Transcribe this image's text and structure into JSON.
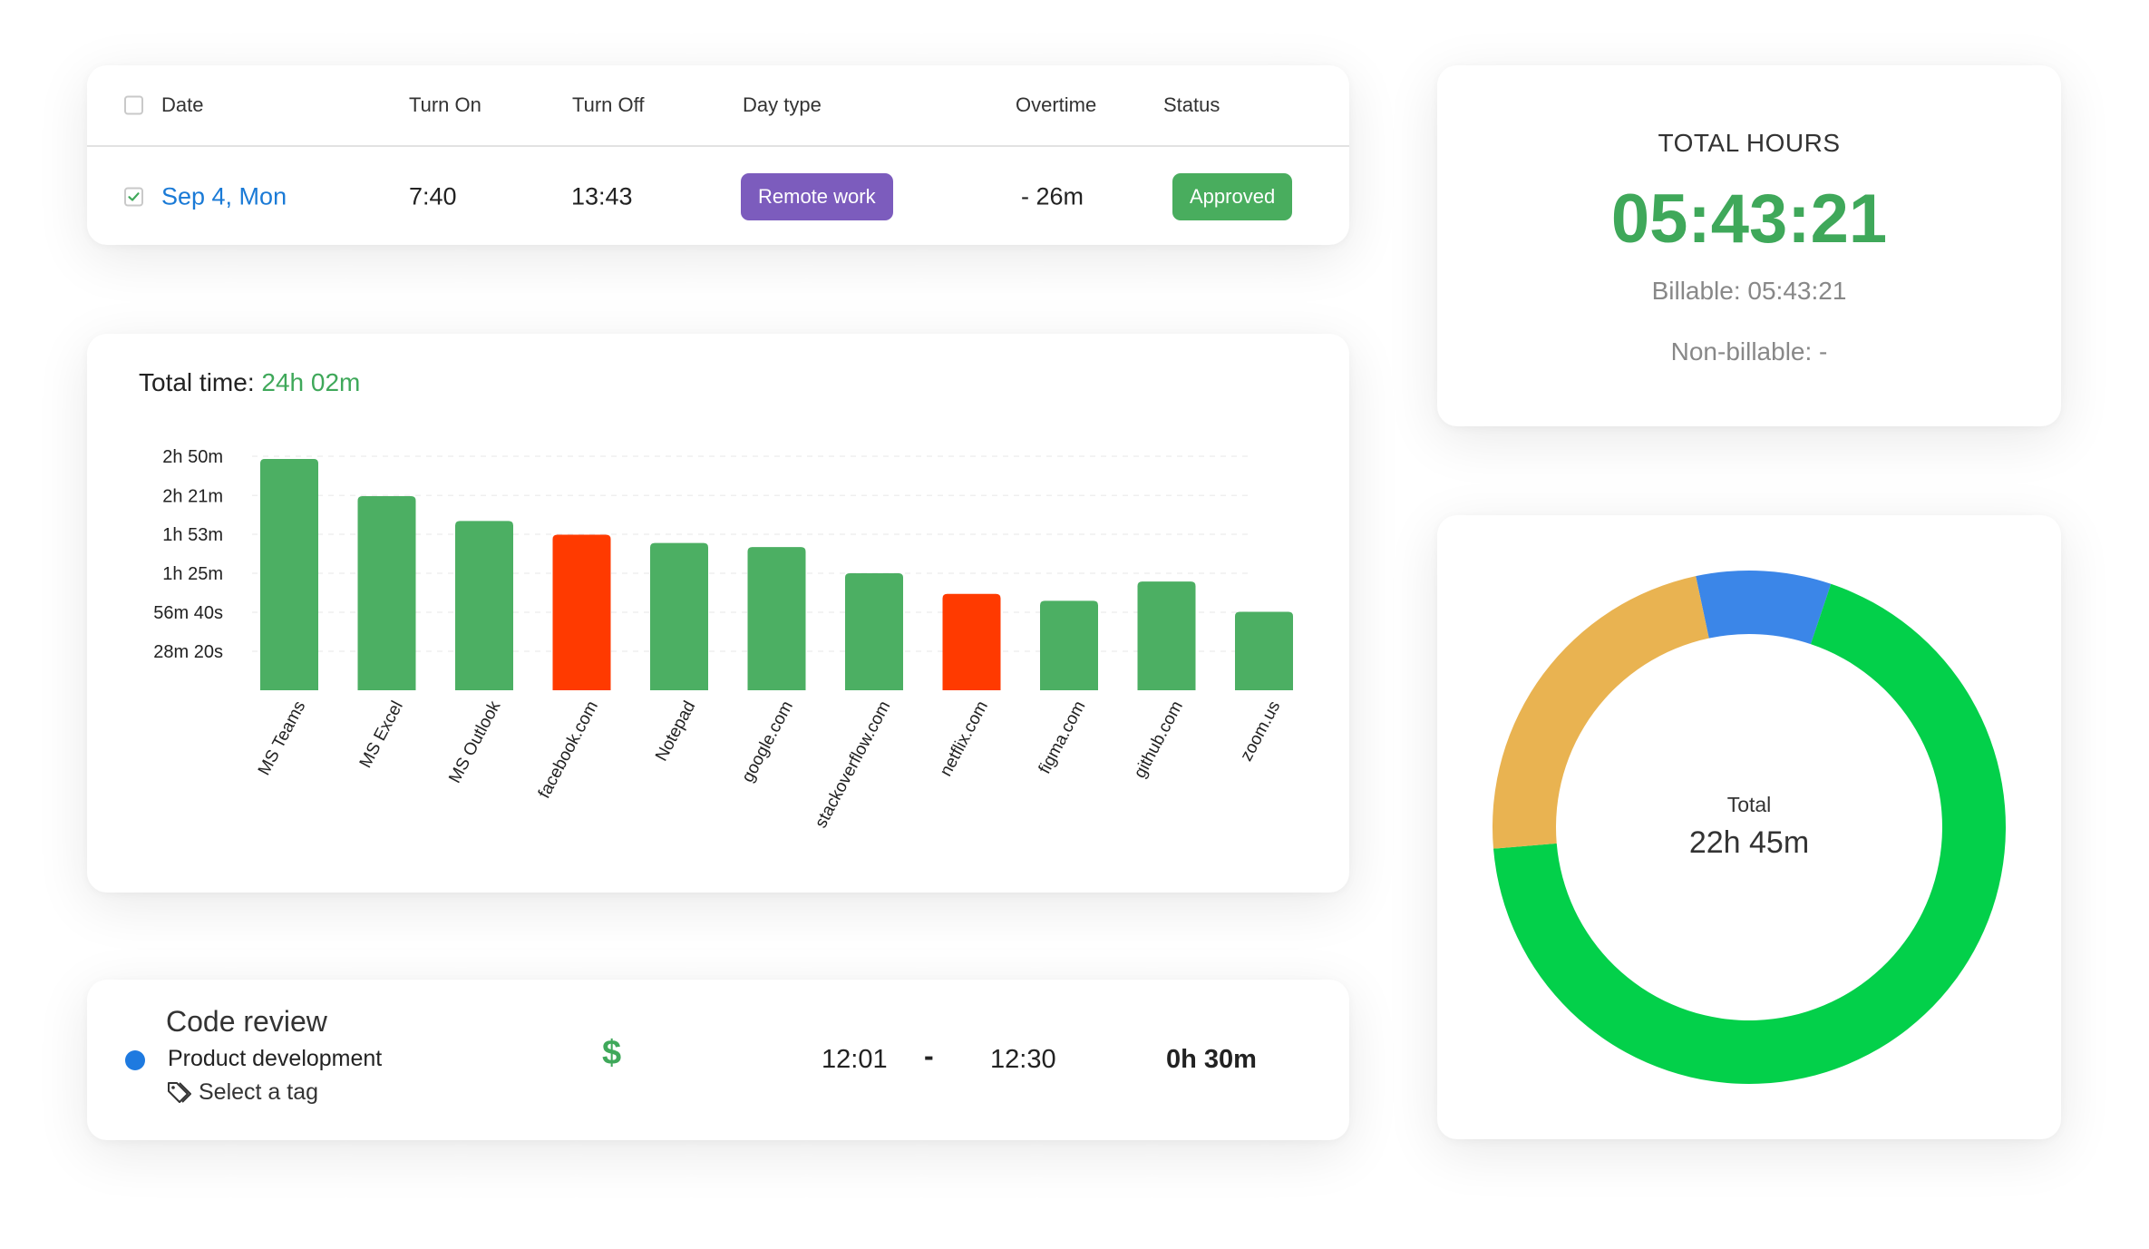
{
  "attendance": {
    "columns": {
      "date": "Date",
      "turn_on": "Turn On",
      "turn_off": "Turn Off",
      "day_type": "Day type",
      "overtime": "Overtime",
      "status": "Status"
    },
    "row": {
      "checked": true,
      "date": "Sep 4, Mon",
      "turn_on": "7:40",
      "turn_off": "13:43",
      "day_type": "Remote work",
      "overtime": "- 26m",
      "status": "Approved"
    },
    "colors": {
      "day_type": "#7c5cbd",
      "status": "#49ad5e",
      "date_link": "#1a7ad6"
    }
  },
  "activity": {
    "title_label": "Total time:",
    "title_value": "24h 02m",
    "chart_data": {
      "type": "bar",
      "categories": [
        "MS Teams",
        "MS Excel",
        "MS Outlook",
        "facebook.com",
        "Notepad",
        "google.com",
        "stackoverflow.com",
        "netflix.com",
        "figma.com",
        "github.com",
        "zoom.us"
      ],
      "values": [
        168,
        141,
        123,
        113,
        107,
        104,
        85,
        70,
        65,
        79,
        57
      ],
      "value_unit": "minutes",
      "productive": [
        true,
        true,
        true,
        false,
        true,
        true,
        true,
        false,
        true,
        true,
        true
      ],
      "y_ticks": [
        {
          "value": 170,
          "label": "2h 50m"
        },
        {
          "value": 141.5,
          "label": "2h 21m"
        },
        {
          "value": 113.3,
          "label": "1h 53m"
        },
        {
          "value": 85,
          "label": "1h 25m"
        },
        {
          "value": 56.67,
          "label": "56m 40s"
        },
        {
          "value": 28.33,
          "label": "28m 20s"
        }
      ],
      "ylim": [
        0,
        170
      ],
      "grid": true,
      "colors": {
        "productive": "#4caf63",
        "unproductive": "#ff3a00"
      }
    }
  },
  "time_entry": {
    "title": "Code review",
    "project": "Product development",
    "project_color": "#1e7ae0",
    "tag_placeholder": "Select a tag",
    "billable_symbol": "$",
    "start": "12:01",
    "separator": "-",
    "end": "12:30",
    "duration": "0h 30m"
  },
  "total_hours": {
    "label": "TOTAL HOURS",
    "value": "05:43:21",
    "billable": "Billable: 05:43:21",
    "non_billable": "Non-billable: -"
  },
  "summary_donut": {
    "label": "Total",
    "value": "22h 45m",
    "chart_data": {
      "type": "pie",
      "donut": true,
      "segments": [
        {
          "fraction": 0.085,
          "color": "#3b86e8"
        },
        {
          "fraction": 0.685,
          "color": "#03d04a"
        },
        {
          "fraction": 0.23,
          "color": "#e9b351"
        }
      ],
      "start_angle_deg": -12
    }
  }
}
